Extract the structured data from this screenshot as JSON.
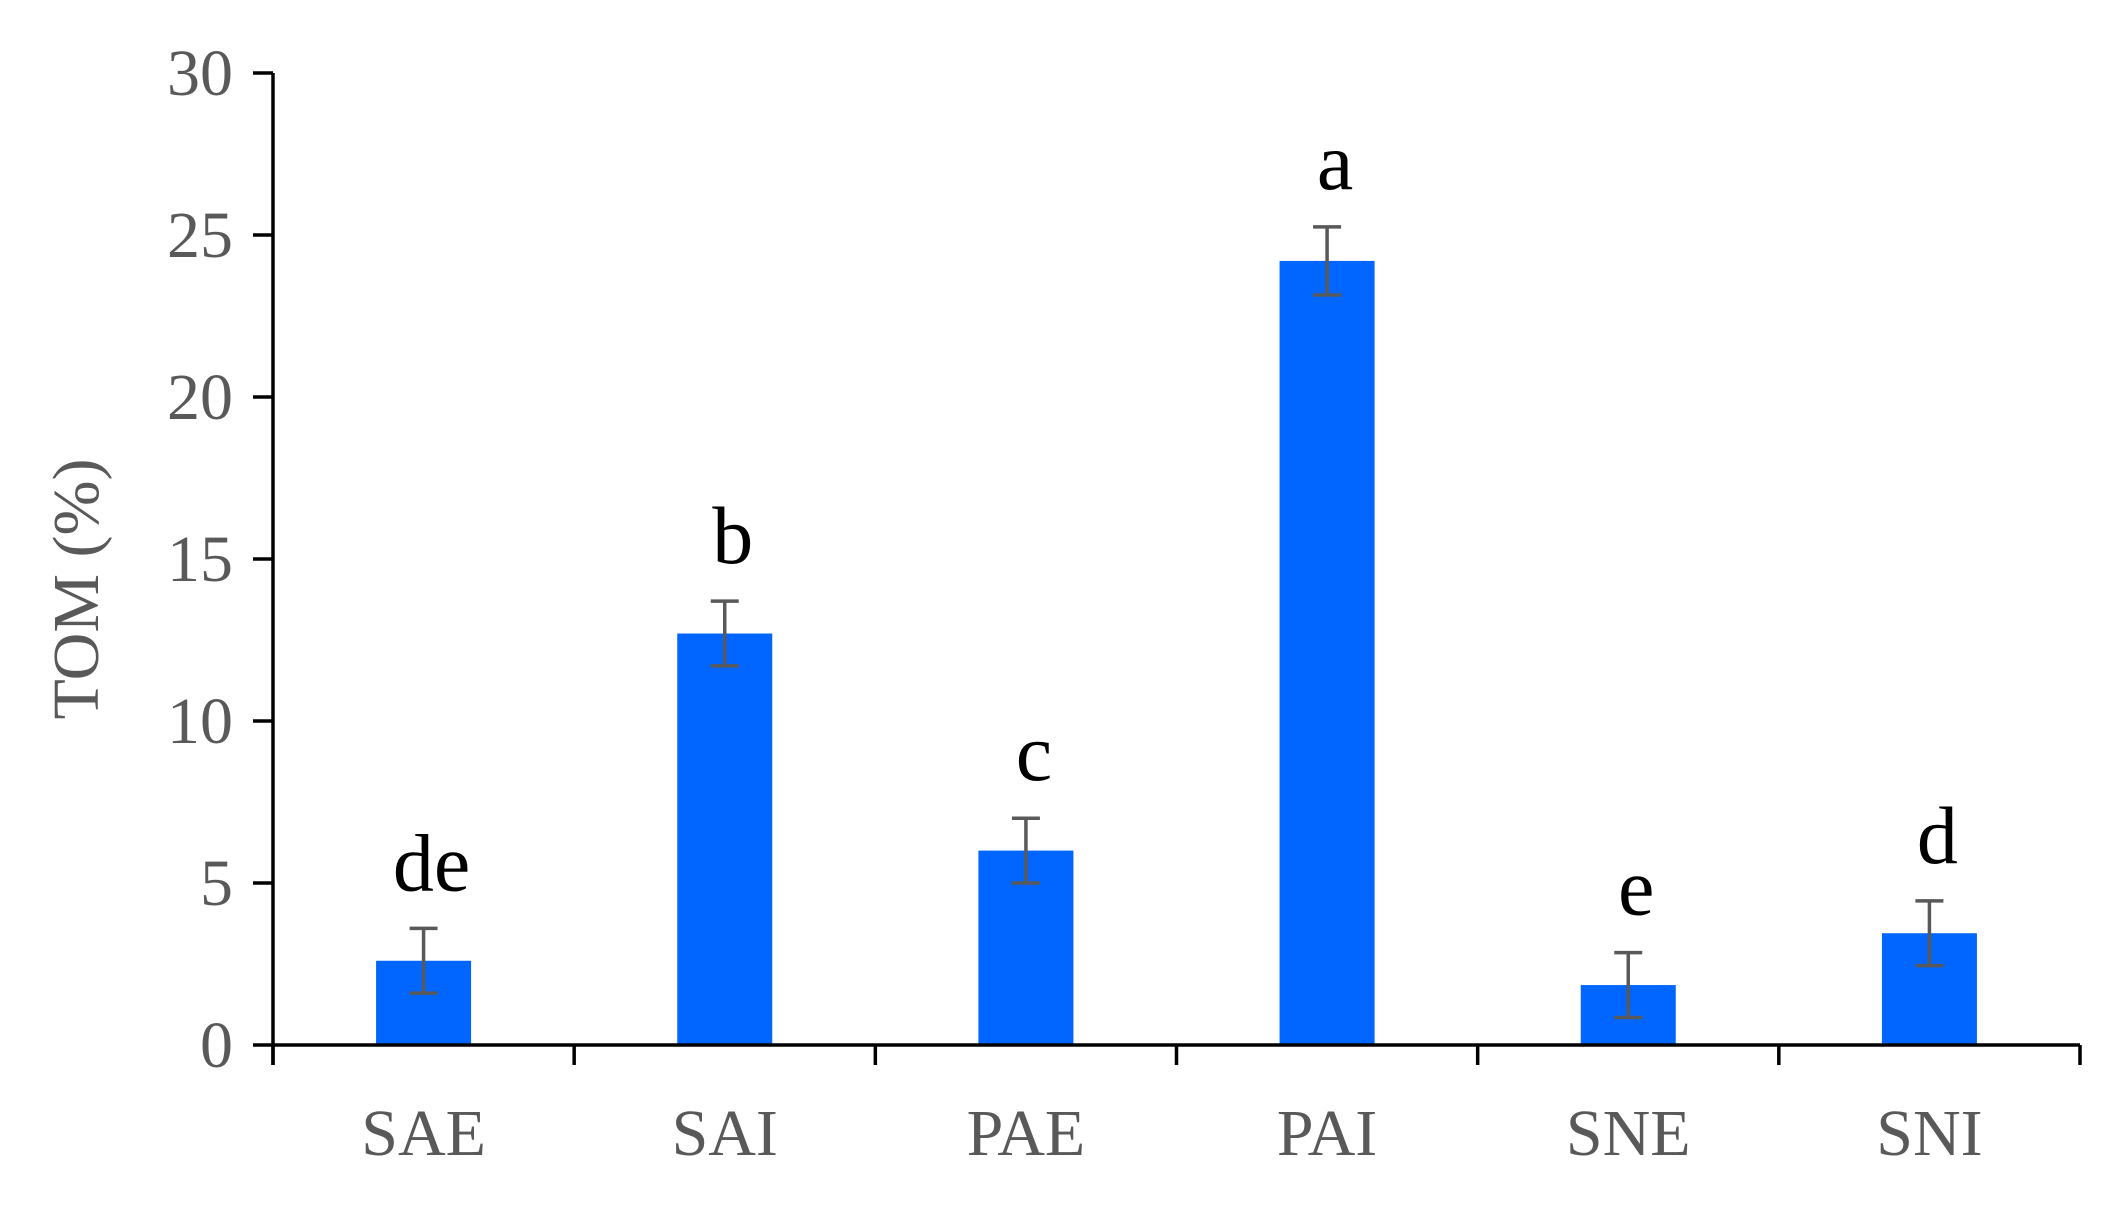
{
  "chart_data": {
    "type": "bar",
    "categories": [
      "SAE",
      "SAI",
      "PAE",
      "PAI",
      "SNE",
      "SNI"
    ],
    "values": [
      2.6,
      12.7,
      6.0,
      24.2,
      1.85,
      3.45
    ],
    "errors": [
      1.0,
      1.0,
      1.0,
      1.05,
      1.0,
      1.0
    ],
    "significance_labels": [
      "de",
      "b",
      "c",
      "a",
      "e",
      "d"
    ],
    "ylabel": "TOM (%)",
    "xlabel": "",
    "ylim": [
      0,
      30
    ],
    "yticks": [
      0,
      5,
      10,
      15,
      20,
      25,
      30
    ],
    "bar_color": "#0066FF",
    "error_color": "#595959",
    "grid": false,
    "legend": "none"
  }
}
